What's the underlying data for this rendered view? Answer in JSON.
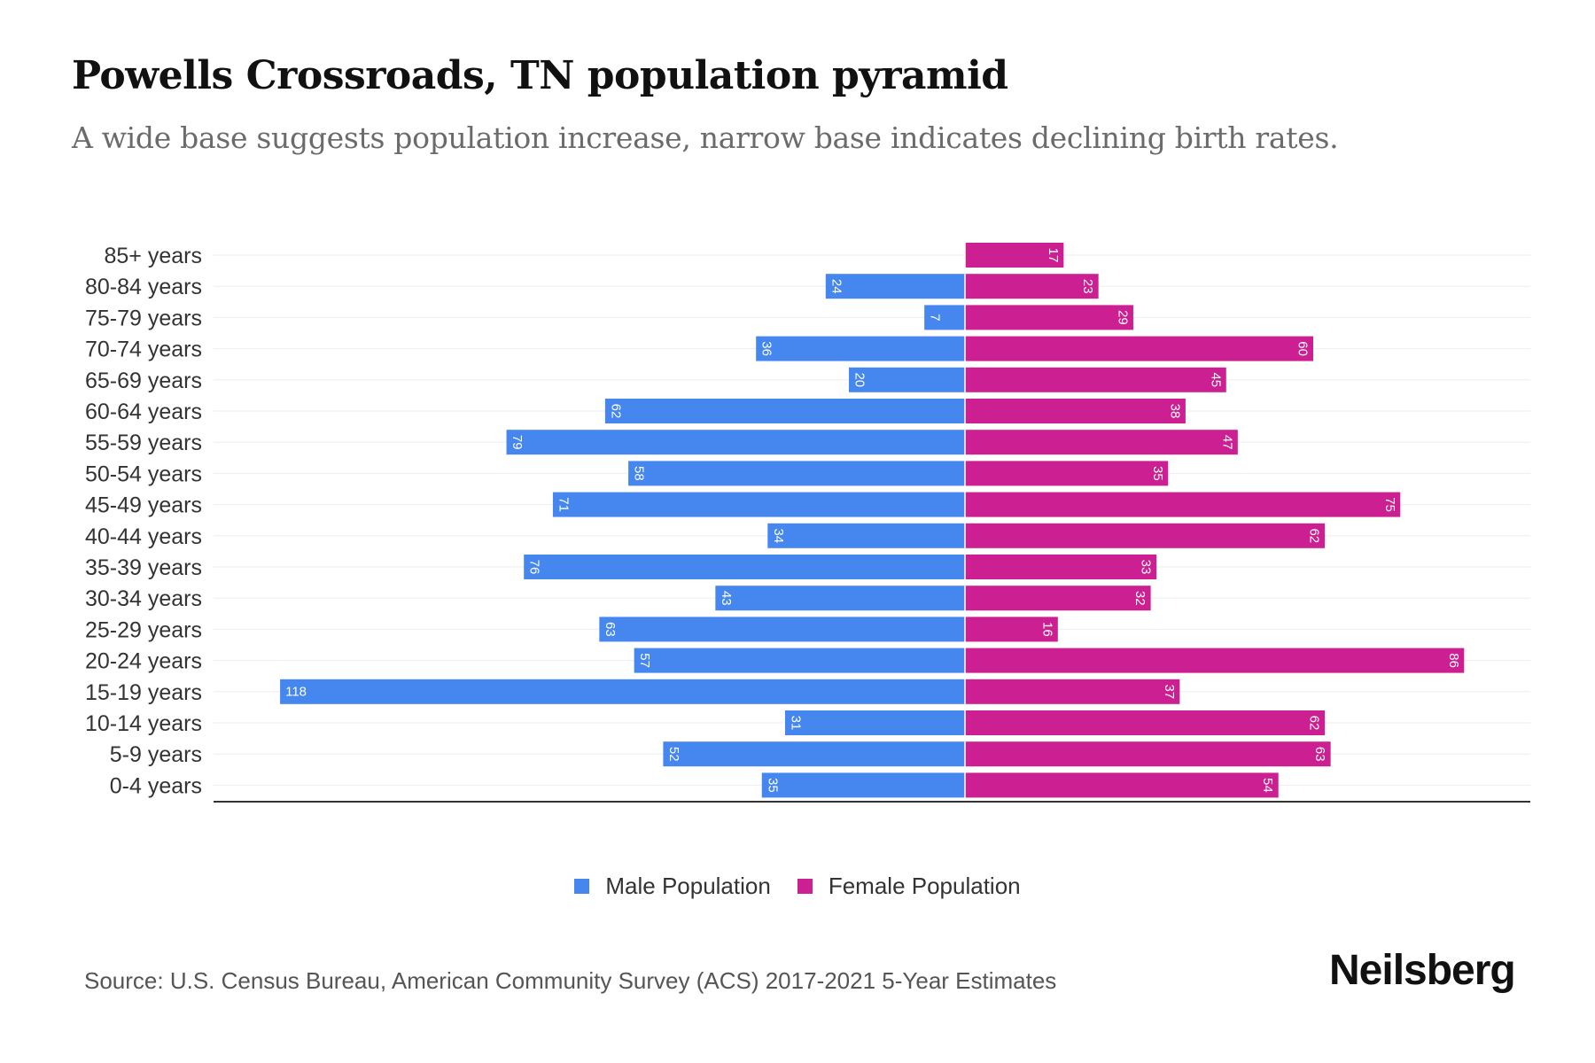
{
  "title": "Powells Crossroads, TN population pyramid",
  "subtitle": "A wide base suggests population increase, narrow base indicates declining birth rates.",
  "source": "Source: U.S. Census Bureau, American Community Survey (ACS) 2017-2021 5-Year Estimates",
  "logo": "Neilsberg",
  "colors": {
    "male": "#4587ef",
    "female": "#cc1f91"
  },
  "chart_data": {
    "type": "bar",
    "orientation": "horizontal-pyramid",
    "title": "Powells Crossroads, TN population pyramid",
    "categories": [
      "85+ years",
      "80-84 years",
      "75-79 years",
      "70-74 years",
      "65-69 years",
      "60-64 years",
      "55-59 years",
      "50-54 years",
      "45-49 years",
      "40-44 years",
      "35-39 years",
      "30-34 years",
      "25-29 years",
      "20-24 years",
      "15-19 years",
      "10-14 years",
      "5-9 years",
      "0-4 years"
    ],
    "series": [
      {
        "name": "Male Population",
        "values": [
          0,
          24,
          7,
          36,
          20,
          62,
          79,
          58,
          71,
          34,
          76,
          43,
          63,
          57,
          118,
          31,
          52,
          35
        ]
      },
      {
        "name": "Female Population",
        "values": [
          17,
          23,
          29,
          60,
          45,
          38,
          47,
          35,
          75,
          62,
          33,
          32,
          16,
          86,
          37,
          62,
          63,
          54
        ]
      }
    ],
    "legend": "bottom-center",
    "grid": true
  }
}
